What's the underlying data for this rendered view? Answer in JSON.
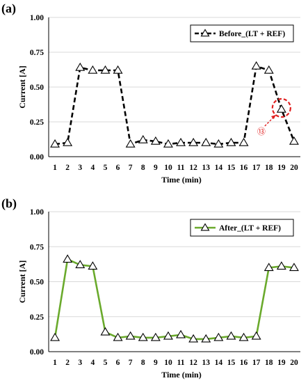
{
  "colors": {
    "before_line": "#000000",
    "after_line": "#6aaa2c",
    "annotation": "#e02020",
    "marker_fill": "#ffffff",
    "marker_stroke": "#000000"
  },
  "chart_data": [
    {
      "type": "line",
      "panel_label": "(a)",
      "xlabel": "Time (min)",
      "ylabel": "Current [A]",
      "x": [
        1,
        2,
        3,
        4,
        5,
        6,
        7,
        8,
        9,
        10,
        11,
        12,
        13,
        14,
        15,
        16,
        17,
        18,
        19,
        20
      ],
      "x_tick_labels": [
        "1",
        "2",
        "3",
        "4",
        "5",
        "6",
        "7",
        "8",
        "9",
        "10",
        "11",
        "12",
        "13",
        "14",
        "15",
        "16",
        "17",
        "18",
        "19",
        "20"
      ],
      "y_ticks": [
        "0.00",
        "0.25",
        "0.50",
        "0.75",
        "1.00"
      ],
      "ylim": [
        0,
        1.0
      ],
      "grid": "horizontal",
      "legend_position": "top-right",
      "series": [
        {
          "name": "Before_(LT + REF)",
          "style": "dashed",
          "marker": "triangle",
          "values": [
            0.09,
            0.1,
            0.64,
            0.62,
            0.62,
            0.62,
            0.09,
            0.12,
            0.11,
            0.09,
            0.1,
            0.1,
            0.1,
            0.09,
            0.1,
            0.1,
            0.65,
            0.62,
            0.34,
            0.11
          ]
        }
      ],
      "annotation": {
        "label": "⑬",
        "target_x": 19
      }
    },
    {
      "type": "line",
      "panel_label": "(b)",
      "xlabel": "Time (min)",
      "ylabel": "Current [A]",
      "x": [
        1,
        2,
        3,
        4,
        5,
        6,
        7,
        8,
        9,
        10,
        11,
        12,
        13,
        14,
        15,
        16,
        17,
        18,
        19,
        20
      ],
      "x_tick_labels": [
        "1",
        "2",
        "3",
        "4",
        "5",
        "6",
        "7",
        "8",
        "9",
        "10",
        "11",
        "12",
        "13",
        "14",
        "15",
        "16",
        "17",
        "18",
        "19",
        "20"
      ],
      "y_ticks": [
        "0.00",
        "0.25",
        "0.50",
        "0.75",
        "1.00"
      ],
      "ylim": [
        0,
        1.0
      ],
      "grid": "horizontal",
      "legend_position": "top-right",
      "series": [
        {
          "name": "After_(LT + REF)",
          "style": "solid",
          "marker": "triangle",
          "values": [
            0.1,
            0.66,
            0.62,
            0.61,
            0.14,
            0.1,
            0.11,
            0.1,
            0.1,
            0.11,
            0.12,
            0.09,
            0.09,
            0.1,
            0.11,
            0.1,
            0.11,
            0.6,
            0.61,
            0.6
          ]
        }
      ]
    }
  ]
}
